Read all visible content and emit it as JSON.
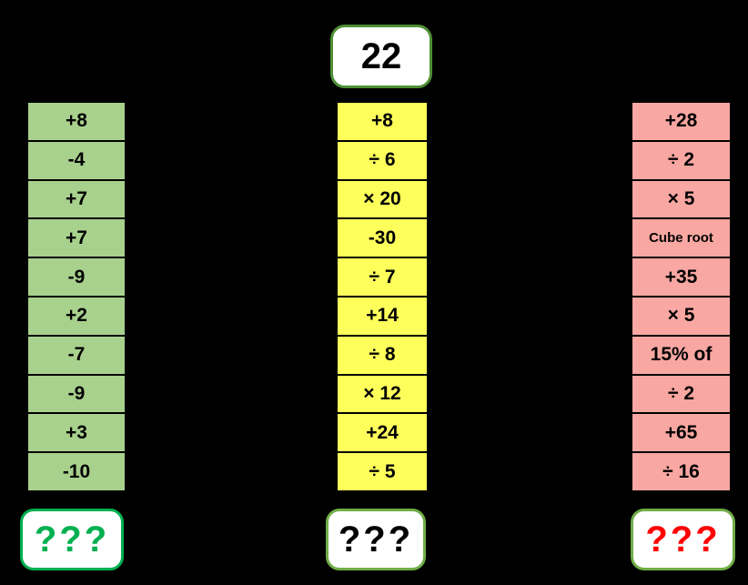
{
  "start_box": {
    "value": "22",
    "border_color": "#4e8f35",
    "text_color": "#000000"
  },
  "columns": [
    {
      "name": "green-chain",
      "bg_color": "#a9d18e",
      "cells": [
        "+8",
        "-4",
        "+7",
        "+7",
        "-9",
        "+2",
        "-7",
        "-9",
        "+3",
        "-10"
      ],
      "result": {
        "label": "???",
        "text_color": "#00b050",
        "border_color": "#00b050"
      }
    },
    {
      "name": "yellow-chain",
      "bg_color": "#ffff5c",
      "cells": [
        "+8",
        "÷ 6",
        "× 20",
        "-30",
        "÷ 7",
        "+14",
        "÷ 8",
        "× 12",
        "+24",
        "÷ 5"
      ],
      "result": {
        "label": "???",
        "text_color": "#000000",
        "border_color": "#70ad47"
      }
    },
    {
      "name": "pink-chain",
      "bg_color": "#f9a7a2",
      "cells": [
        "+28",
        "÷ 2",
        "× 5",
        "Cube root",
        "+35",
        "× 5",
        "15% of",
        "÷ 2",
        "+65",
        "÷ 16"
      ],
      "result": {
        "label": "???",
        "text_color": "#ff0000",
        "border_color": "#70ad47"
      }
    }
  ],
  "colors": {
    "background": "#000000",
    "cell_border": "#000000"
  }
}
